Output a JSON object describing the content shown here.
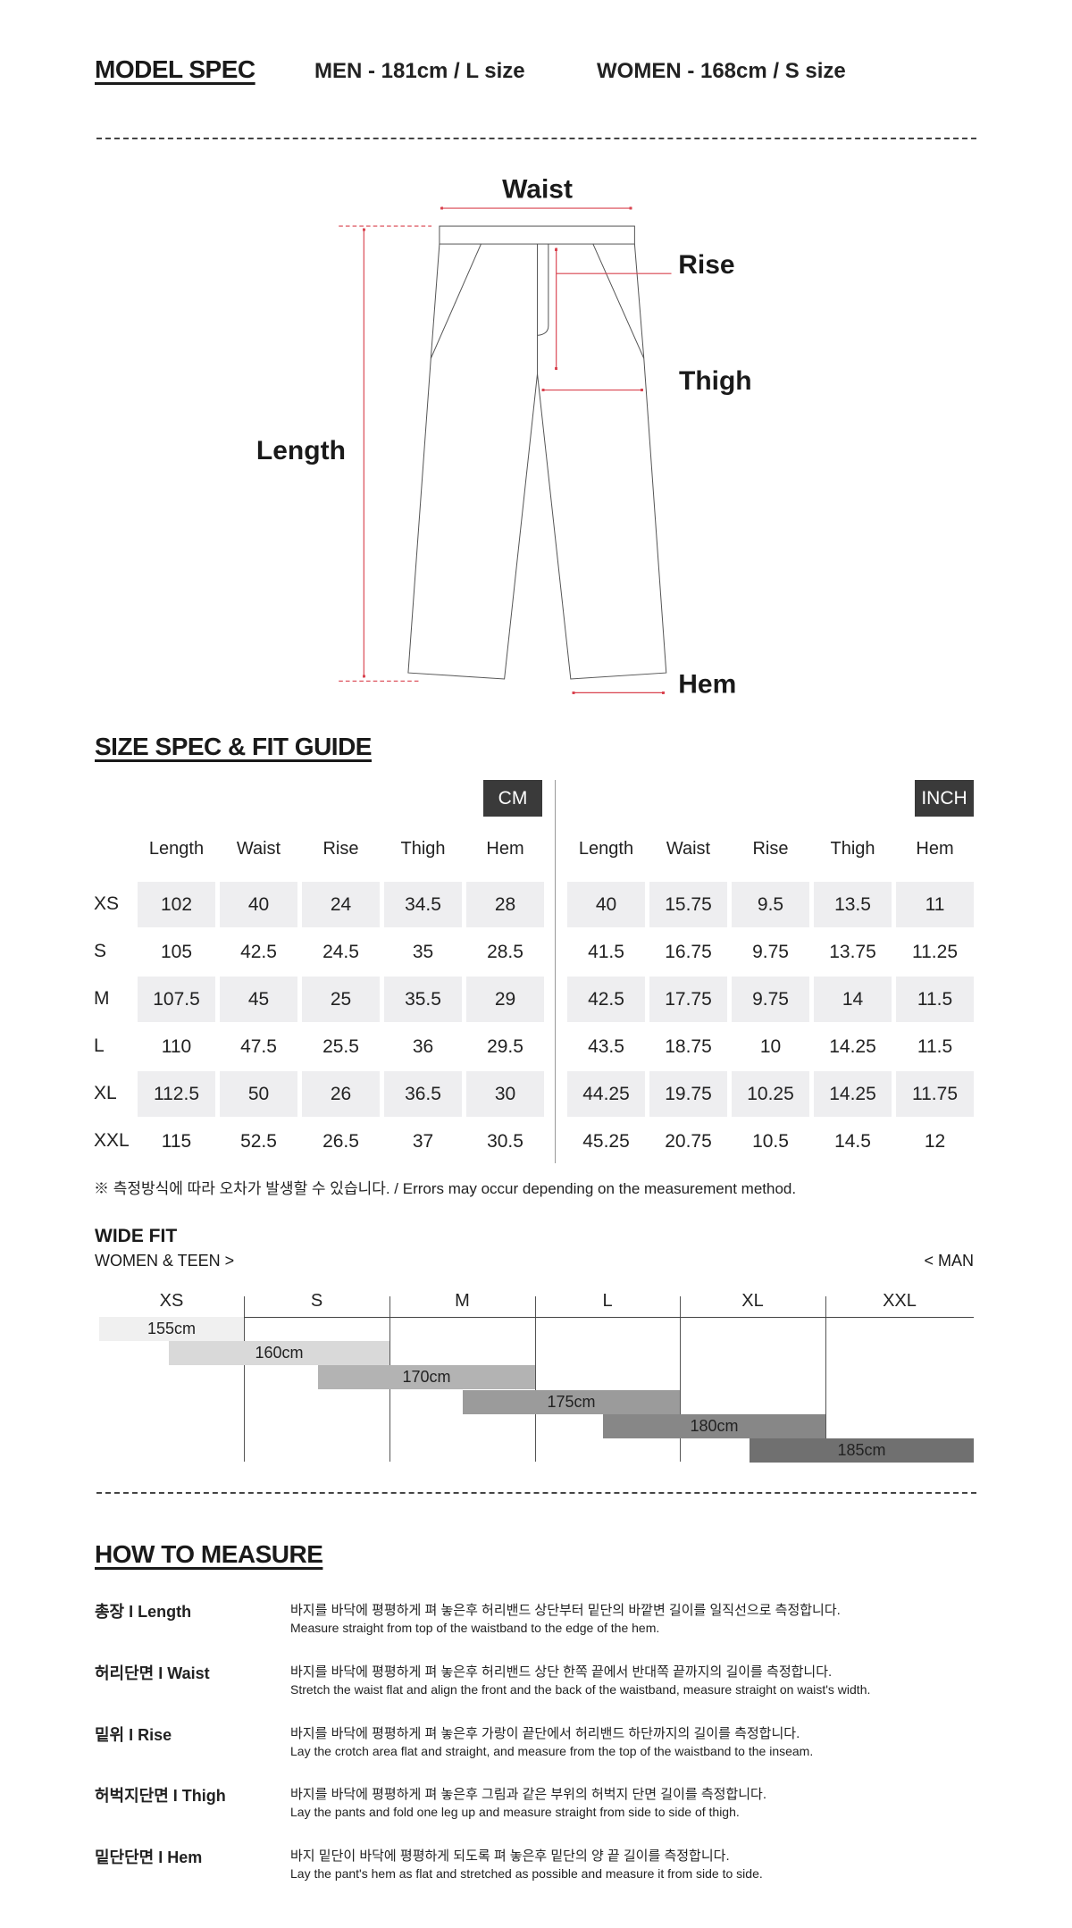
{
  "model_spec": {
    "title": "MODEL SPEC",
    "men": "MEN - 181cm / L size",
    "women": "WOMEN - 168cm / S size"
  },
  "diagram": {
    "labels": {
      "waist": "Waist",
      "rise": "Rise",
      "thigh": "Thigh",
      "length": "Length",
      "hem": "Hem"
    },
    "accent_color": "#d9434f"
  },
  "size_spec": {
    "title": "SIZE SPEC  &  FIT GUIDE",
    "cm_label": "CM",
    "inch_label": "INCH",
    "columns": [
      "Length",
      "Waist",
      "Rise",
      "Thigh",
      "Hem"
    ],
    "sizes": [
      "XS",
      "S",
      "M",
      "L",
      "XL",
      "XXL"
    ],
    "cm": [
      [
        "102",
        "40",
        "24",
        "34.5",
        "28"
      ],
      [
        "105",
        "42.5",
        "24.5",
        "35",
        "28.5"
      ],
      [
        "107.5",
        "45",
        "25",
        "35.5",
        "29"
      ],
      [
        "110",
        "47.5",
        "25.5",
        "36",
        "29.5"
      ],
      [
        "112.5",
        "50",
        "26",
        "36.5",
        "30"
      ],
      [
        "115",
        "52.5",
        "26.5",
        "37",
        "30.5"
      ]
    ],
    "inch": [
      [
        "40",
        "15.75",
        "9.5",
        "13.5",
        "11"
      ],
      [
        "41.5",
        "16.75",
        "9.75",
        "13.75",
        "11.25"
      ],
      [
        "42.5",
        "17.75",
        "9.75",
        "14",
        "11.5"
      ],
      [
        "43.5",
        "18.75",
        "10",
        "14.25",
        "11.5"
      ],
      [
        "44.25",
        "19.75",
        "10.25",
        "14.25",
        "11.75"
      ],
      [
        "45.25",
        "20.75",
        "10.5",
        "14.5",
        "12"
      ]
    ],
    "note": "※ 측정방식에 따라 오차가 발생할 수 있습니다. / Errors may occur depending on the measurement method."
  },
  "fit": {
    "title": "WIDE FIT",
    "left_label": "WOMEN & TEEN >",
    "right_label": "< MAN",
    "sizes": [
      "XS",
      "S",
      "M",
      "L",
      "XL",
      "XXL"
    ],
    "heights": [
      {
        "label": "155cm",
        "color": "#f0f0f0"
      },
      {
        "label": "160cm",
        "color": "#d9d9d9"
      },
      {
        "label": "170cm",
        "color": "#b3b3b3"
      },
      {
        "label": "175cm",
        "color": "#9b9b9b"
      },
      {
        "label": "180cm",
        "color": "#878787"
      },
      {
        "label": "185cm",
        "color": "#707070"
      }
    ]
  },
  "how_to_measure": {
    "title": "HOW TO MEASURE",
    "items": [
      {
        "label": "총장 I Length",
        "ko": "바지를 바닥에 평평하게 펴 놓은후 허리밴드 상단부터 밑단의 바깥변 길이를 일직선으로 측정합니다.",
        "en": "Measure straight from top of the waistband to the edge of the hem."
      },
      {
        "label": "허리단면 I Waist",
        "ko": "바지를 바닥에 평평하게 펴 놓은후 허리밴드 상단 한쪽 끝에서 반대쪽 끝까지의 길이를 측정합니다.",
        "en": "Stretch the waist flat and align the front and the back of the waistband, measure straight on waist's width."
      },
      {
        "label": "밑위 I Rise",
        "ko": "바지를 바닥에 평평하게 펴 놓은후 가랑이 끝단에서 허리밴드 하단까지의 길이를 측정합니다.",
        "en": "Lay the crotch area flat and straight, and measure from the top of the waistband to the inseam."
      },
      {
        "label": "허벅지단면 I Thigh",
        "ko": "바지를 바닥에 평평하게 펴 놓은후 그림과 같은 부위의 허벅지 단면 길이를 측정합니다.",
        "en": "Lay the pants and fold one leg up and measure straight from side to side of thigh."
      },
      {
        "label": "밑단단면 I Hem",
        "ko": "바지 밑단이 바닥에 평평하게 되도록 펴 놓은후 밑단의 양 끝 길이를 측정합니다.",
        "en": "Lay the pant's hem as flat and stretched as possible and measure it from side to side."
      }
    ]
  }
}
